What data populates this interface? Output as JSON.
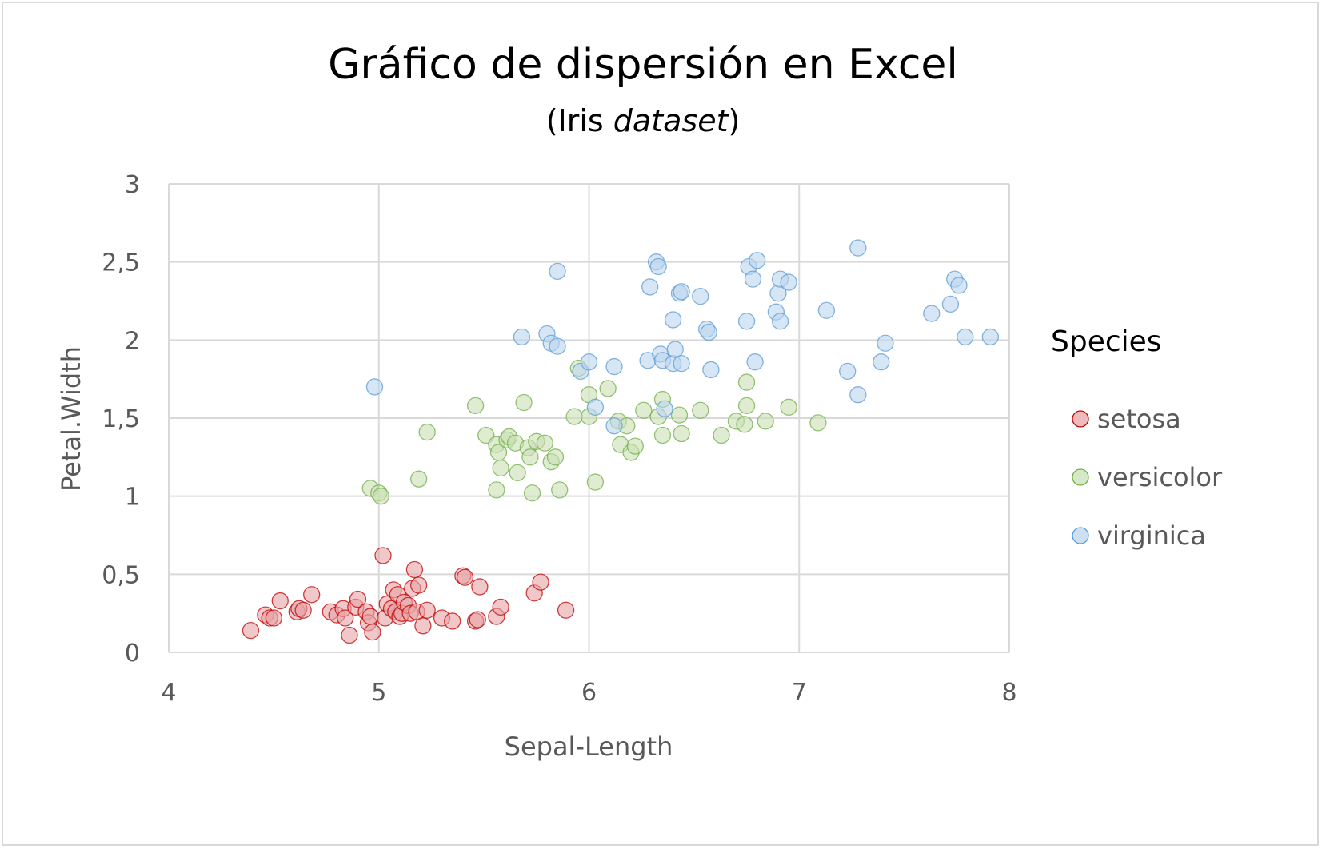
{
  "chart_data": {
    "type": "scatter",
    "title": "Gráfico de dispersión en Excel",
    "subtitle_prefix": "(Iris ",
    "subtitle_italic": "dataset",
    "subtitle_suffix": ")",
    "xlabel": "Sepal-Length",
    "ylabel": "Petal.Width",
    "xlim": [
      4,
      8
    ],
    "ylim": [
      0,
      3
    ],
    "x_ticks": [
      "4",
      "5",
      "6",
      "7",
      "8"
    ],
    "y_ticks": [
      "0",
      "0,5",
      "1",
      "1,5",
      "2",
      "2,5",
      "3"
    ],
    "grid": true,
    "legend_title": "Species",
    "legend_position": "right",
    "series": [
      {
        "name": "setosa",
        "fill": "#e8a3a6",
        "stroke": "#c00000",
        "points": [
          [
            4.39,
            0.14
          ],
          [
            4.46,
            0.24
          ],
          [
            4.48,
            0.22
          ],
          [
            4.5,
            0.22
          ],
          [
            4.53,
            0.33
          ],
          [
            4.61,
            0.26
          ],
          [
            4.62,
            0.28
          ],
          [
            4.64,
            0.27
          ],
          [
            4.68,
            0.37
          ],
          [
            4.77,
            0.26
          ],
          [
            4.8,
            0.24
          ],
          [
            4.83,
            0.28
          ],
          [
            4.84,
            0.22
          ],
          [
            4.86,
            0.11
          ],
          [
            4.89,
            0.29
          ],
          [
            4.9,
            0.34
          ],
          [
            4.94,
            0.26
          ],
          [
            4.95,
            0.19
          ],
          [
            4.96,
            0.23
          ],
          [
            4.97,
            0.13
          ],
          [
            5.02,
            0.62
          ],
          [
            5.03,
            0.22
          ],
          [
            5.04,
            0.31
          ],
          [
            5.06,
            0.28
          ],
          [
            5.07,
            0.4
          ],
          [
            5.08,
            0.26
          ],
          [
            5.09,
            0.37
          ],
          [
            5.1,
            0.23
          ],
          [
            5.11,
            0.25
          ],
          [
            5.12,
            0.32
          ],
          [
            5.14,
            0.3
          ],
          [
            5.15,
            0.25
          ],
          [
            5.16,
            0.41
          ],
          [
            5.17,
            0.53
          ],
          [
            5.18,
            0.26
          ],
          [
            5.19,
            0.43
          ],
          [
            5.21,
            0.17
          ],
          [
            5.23,
            0.27
          ],
          [
            5.3,
            0.22
          ],
          [
            5.35,
            0.2
          ],
          [
            5.4,
            0.49
          ],
          [
            5.41,
            0.48
          ],
          [
            5.46,
            0.2
          ],
          [
            5.47,
            0.21
          ],
          [
            5.48,
            0.42
          ],
          [
            5.56,
            0.23
          ],
          [
            5.58,
            0.29
          ],
          [
            5.74,
            0.38
          ],
          [
            5.77,
            0.45
          ],
          [
            5.89,
            0.27
          ]
        ]
      },
      {
        "name": "versicolor",
        "fill": "#c9e0b4",
        "stroke": "#70ad47",
        "points": [
          [
            4.96,
            1.05
          ],
          [
            5.0,
            1.02
          ],
          [
            5.01,
            1.0
          ],
          [
            5.19,
            1.11
          ],
          [
            5.23,
            1.41
          ],
          [
            5.46,
            1.58
          ],
          [
            5.51,
            1.39
          ],
          [
            5.56,
            1.04
          ],
          [
            5.56,
            1.33
          ],
          [
            5.57,
            1.28
          ],
          [
            5.58,
            1.18
          ],
          [
            5.61,
            1.36
          ],
          [
            5.62,
            1.38
          ],
          [
            5.65,
            1.34
          ],
          [
            5.66,
            1.15
          ],
          [
            5.69,
            1.6
          ],
          [
            5.71,
            1.31
          ],
          [
            5.72,
            1.25
          ],
          [
            5.73,
            1.02
          ],
          [
            5.75,
            1.35
          ],
          [
            5.79,
            1.34
          ],
          [
            5.82,
            1.22
          ],
          [
            5.84,
            1.25
          ],
          [
            5.86,
            1.04
          ],
          [
            5.93,
            1.51
          ],
          [
            5.95,
            1.82
          ],
          [
            6.0,
            1.65
          ],
          [
            6.0,
            1.51
          ],
          [
            6.03,
            1.09
          ],
          [
            6.09,
            1.69
          ],
          [
            6.14,
            1.48
          ],
          [
            6.15,
            1.33
          ],
          [
            6.18,
            1.45
          ],
          [
            6.2,
            1.28
          ],
          [
            6.22,
            1.32
          ],
          [
            6.26,
            1.55
          ],
          [
            6.33,
            1.51
          ],
          [
            6.35,
            1.62
          ],
          [
            6.35,
            1.39
          ],
          [
            6.43,
            1.52
          ],
          [
            6.44,
            1.4
          ],
          [
            6.53,
            1.55
          ],
          [
            6.63,
            1.39
          ],
          [
            6.7,
            1.48
          ],
          [
            6.74,
            1.46
          ],
          [
            6.75,
            1.73
          ],
          [
            6.75,
            1.58
          ],
          [
            6.84,
            1.48
          ],
          [
            6.95,
            1.57
          ],
          [
            7.09,
            1.47
          ]
        ]
      },
      {
        "name": "virginica",
        "fill": "#bcd6ee",
        "stroke": "#5b9bd5",
        "points": [
          [
            4.98,
            1.7
          ],
          [
            5.68,
            2.02
          ],
          [
            5.8,
            2.04
          ],
          [
            5.82,
            1.98
          ],
          [
            5.85,
            1.96
          ],
          [
            5.85,
            2.44
          ],
          [
            5.96,
            1.8
          ],
          [
            6.0,
            1.86
          ],
          [
            6.03,
            1.57
          ],
          [
            6.12,
            1.45
          ],
          [
            6.12,
            1.83
          ],
          [
            6.28,
            1.87
          ],
          [
            6.29,
            2.34
          ],
          [
            6.32,
            2.5
          ],
          [
            6.33,
            2.47
          ],
          [
            6.34,
            1.91
          ],
          [
            6.35,
            1.87
          ],
          [
            6.36,
            1.56
          ],
          [
            6.4,
            1.85
          ],
          [
            6.4,
            2.13
          ],
          [
            6.41,
            1.94
          ],
          [
            6.43,
            2.3
          ],
          [
            6.44,
            2.31
          ],
          [
            6.44,
            1.85
          ],
          [
            6.53,
            2.28
          ],
          [
            6.56,
            2.07
          ],
          [
            6.57,
            2.05
          ],
          [
            6.58,
            1.81
          ],
          [
            6.75,
            2.12
          ],
          [
            6.76,
            2.47
          ],
          [
            6.78,
            2.39
          ],
          [
            6.79,
            1.86
          ],
          [
            6.8,
            2.51
          ],
          [
            6.89,
            2.18
          ],
          [
            6.9,
            2.3
          ],
          [
            6.91,
            2.39
          ],
          [
            6.91,
            2.12
          ],
          [
            6.95,
            2.37
          ],
          [
            7.13,
            2.19
          ],
          [
            7.23,
            1.8
          ],
          [
            7.28,
            1.65
          ],
          [
            7.28,
            2.59
          ],
          [
            7.39,
            1.86
          ],
          [
            7.41,
            1.98
          ],
          [
            7.63,
            2.17
          ],
          [
            7.72,
            2.23
          ],
          [
            7.74,
            2.39
          ],
          [
            7.76,
            2.35
          ],
          [
            7.79,
            2.02
          ],
          [
            7.91,
            2.02
          ]
        ]
      }
    ]
  }
}
